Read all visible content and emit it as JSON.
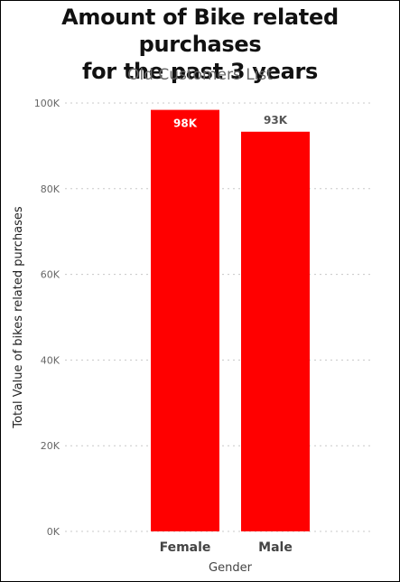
{
  "chart_data": {
    "type": "bar",
    "title_lines": [
      "Amount of Bike related purchases",
      "for the past 3 years"
    ],
    "subtitle": "Old Customers List",
    "categories": [
      "Female",
      "Male"
    ],
    "values": [
      98400,
      93300
    ],
    "data_labels": [
      "98K",
      "93K"
    ],
    "xlabel": "Gender",
    "ylabel": "Total Value of bikes related purchases",
    "ylim": [
      0,
      100000
    ],
    "yticks": [
      0,
      20000,
      40000,
      60000,
      80000,
      100000
    ],
    "ytick_labels": [
      "0K",
      "20K",
      "40K",
      "60K",
      "80K",
      "100K"
    ],
    "grid": true,
    "bar_color": "#ff0000",
    "label_colors": [
      "#ffffff",
      "#555555"
    ]
  }
}
